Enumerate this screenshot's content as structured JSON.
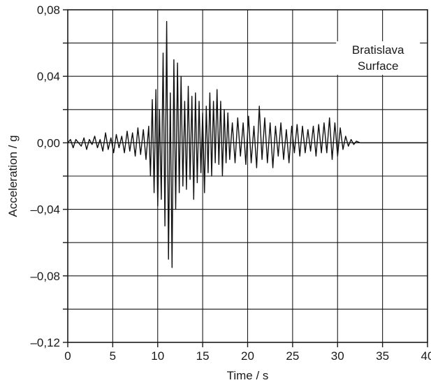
{
  "chart_data": {
    "type": "line",
    "title": "",
    "xlabel": "Time / s",
    "ylabel": "Acceleration / g",
    "xlim": [
      0,
      40
    ],
    "ylim": [
      -0.12,
      0.08
    ],
    "x_ticks": [
      0,
      5,
      10,
      15,
      20,
      25,
      30,
      35,
      40
    ],
    "x_tick_labels": [
      "0",
      "5",
      "10",
      "15",
      "20",
      "25",
      "30",
      "35",
      "40"
    ],
    "y_ticks": [
      -0.12,
      -0.08,
      -0.04,
      0.0,
      0.04,
      0.08
    ],
    "y_tick_labels": [
      "–0,12",
      "–0,08",
      "–0,04",
      "0,00",
      "0,04",
      "0,08"
    ],
    "grid": true,
    "annotation": [
      "Bratislava",
      "Surface"
    ],
    "series": [
      {
        "x": [
          0,
          0.3,
          0.6,
          0.9,
          1.2,
          1.5,
          1.8,
          2.1,
          2.4,
          2.7,
          3.0,
          3.3,
          3.6,
          3.9,
          4.2,
          4.5,
          4.8,
          5.1,
          5.4,
          5.7,
          6.0,
          6.3,
          6.6,
          6.9,
          7.2,
          7.5,
          7.8,
          8.1,
          8.4,
          8.7,
          9.0,
          9.2,
          9.4,
          9.6,
          9.8,
          10.0,
          10.2,
          10.4,
          10.6,
          10.8,
          11.0,
          11.2,
          11.4,
          11.6,
          11.8,
          12.0,
          12.2,
          12.4,
          12.6,
          12.8,
          13.0,
          13.2,
          13.4,
          13.6,
          13.8,
          14.0,
          14.2,
          14.4,
          14.6,
          14.8,
          15.0,
          15.2,
          15.4,
          15.6,
          15.8,
          16.0,
          16.2,
          16.4,
          16.6,
          16.8,
          17.0,
          17.2,
          17.4,
          17.6,
          17.8,
          18.0,
          18.3,
          18.6,
          18.9,
          19.2,
          19.5,
          19.8,
          20.1,
          20.4,
          20.7,
          21.0,
          21.3,
          21.6,
          21.9,
          22.2,
          22.5,
          22.8,
          23.1,
          23.4,
          23.7,
          24.0,
          24.3,
          24.6,
          24.9,
          25.2,
          25.5,
          25.8,
          26.1,
          26.4,
          26.7,
          27.0,
          27.3,
          27.6,
          27.9,
          28.2,
          28.5,
          28.8,
          29.1,
          29.4,
          29.7,
          30.0,
          30.3,
          30.6,
          30.9,
          31.2,
          31.5,
          31.8,
          32.1,
          32.5,
          33.0,
          34.0,
          35.0,
          36.0,
          37.0,
          38.0,
          39.0,
          40.0
        ],
        "y": [
          0.0,
          0.002,
          -0.003,
          0.002,
          0.0,
          -0.002,
          0.003,
          -0.004,
          0.002,
          -0.001,
          0.004,
          -0.003,
          0.002,
          -0.005,
          0.006,
          -0.004,
          0.003,
          -0.006,
          0.005,
          -0.003,
          0.004,
          -0.006,
          0.007,
          -0.005,
          0.006,
          -0.008,
          0.009,
          -0.007,
          0.008,
          -0.01,
          0.01,
          -0.02,
          0.026,
          -0.03,
          0.032,
          -0.038,
          0.02,
          -0.034,
          0.054,
          -0.05,
          0.073,
          -0.07,
          0.03,
          -0.075,
          0.05,
          -0.04,
          0.048,
          -0.03,
          0.04,
          -0.026,
          0.025,
          -0.028,
          0.034,
          -0.022,
          0.028,
          -0.034,
          0.03,
          -0.024,
          0.025,
          -0.018,
          0.018,
          -0.03,
          0.022,
          -0.018,
          0.03,
          -0.02,
          0.025,
          -0.012,
          0.032,
          -0.013,
          0.025,
          -0.02,
          0.02,
          -0.012,
          0.018,
          -0.01,
          0.012,
          -0.012,
          0.015,
          -0.008,
          0.012,
          -0.013,
          0.016,
          -0.012,
          0.01,
          -0.015,
          0.022,
          -0.01,
          0.015,
          -0.012,
          0.012,
          -0.015,
          0.01,
          -0.008,
          0.012,
          -0.01,
          0.008,
          -0.012,
          0.01,
          -0.006,
          0.011,
          -0.008,
          0.01,
          -0.006,
          0.008,
          -0.005,
          0.01,
          -0.008,
          0.011,
          -0.006,
          0.012,
          -0.006,
          0.015,
          -0.01,
          0.012,
          -0.008,
          0.009,
          -0.004,
          0.004,
          -0.002,
          0.002,
          -0.001,
          0.001,
          0.0,
          0.0,
          0.0,
          0.0,
          0.0,
          0.0,
          0.0,
          0.0,
          0.0
        ]
      }
    ]
  }
}
